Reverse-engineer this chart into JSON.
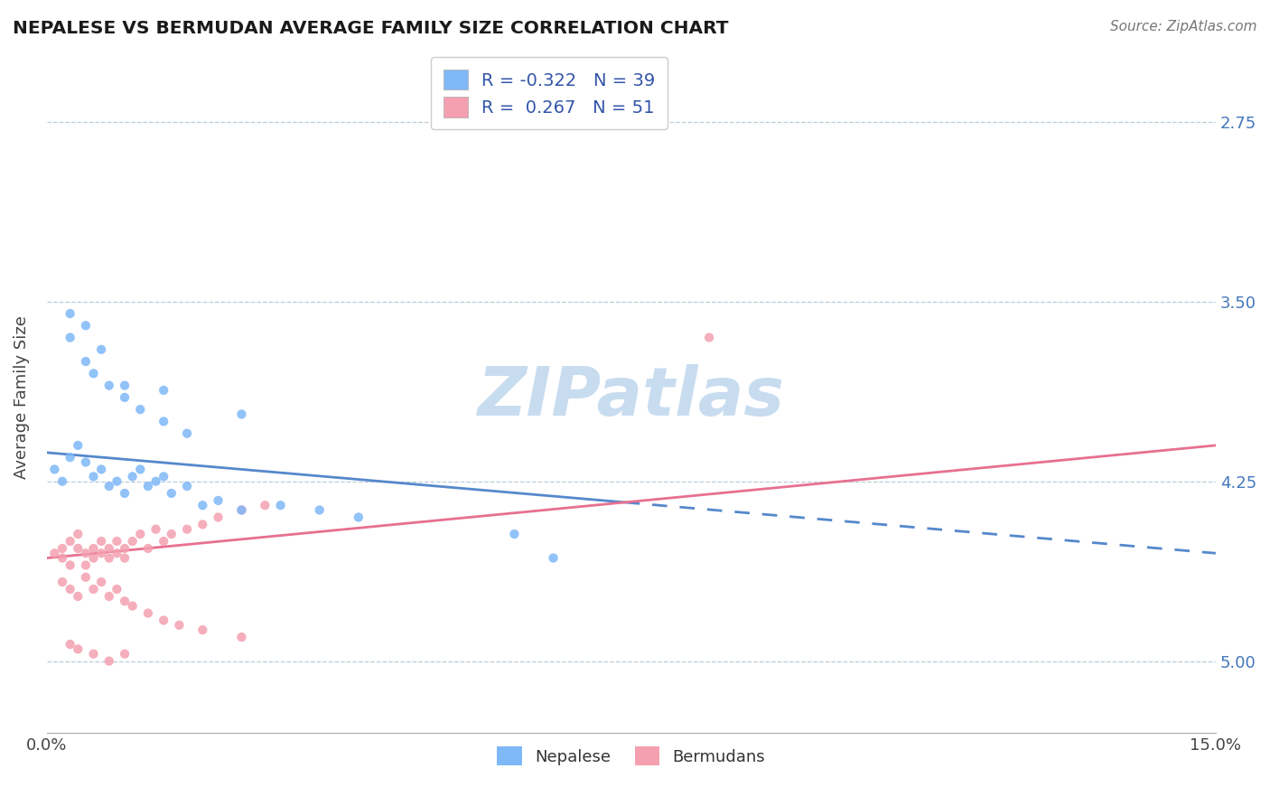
{
  "title": "NEPALESE VS BERMUDAN AVERAGE FAMILY SIZE CORRELATION CHART",
  "source_text": "Source: ZipAtlas.com",
  "ylabel": "Average Family Size",
  "xlim": [
    0.0,
    0.15
  ],
  "ylim": [
    2.45,
    5.25
  ],
  "yticks": [
    2.75,
    3.5,
    4.25,
    5.0
  ],
  "xticks": [
    0.0,
    0.15
  ],
  "xticklabels": [
    "0.0%",
    "15.0%"
  ],
  "yticklabels_right": [
    "5.00",
    "4.25",
    "3.50",
    "2.75"
  ],
  "nepalese_color": "#7EB8F7",
  "bermudan_color": "#F4A0B0",
  "nepalese_line_color": "#5588CC",
  "bermudan_line_color": "#E87090",
  "legend_text_color": "#3355AA",
  "watermark_text": "ZIPatlas",
  "watermark_color": "#C8DCF0",
  "R_nepalese": -0.322,
  "N_nepalese": 39,
  "R_bermudan": 0.267,
  "N_bermudan": 51,
  "nep_line_x0": 0.0,
  "nep_line_y0": 3.62,
  "nep_line_x1": 0.15,
  "nep_line_y1": 3.2,
  "berm_line_x0": 0.0,
  "berm_line_y0": 3.18,
  "berm_line_x1": 0.15,
  "berm_line_y1": 3.65,
  "nepalese_scatter_x": [
    0.001,
    0.002,
    0.003,
    0.004,
    0.005,
    0.006,
    0.007,
    0.008,
    0.009,
    0.01,
    0.011,
    0.012,
    0.013,
    0.014,
    0.015,
    0.016,
    0.018,
    0.02,
    0.022,
    0.025,
    0.03,
    0.035,
    0.04,
    0.003,
    0.005,
    0.006,
    0.008,
    0.01,
    0.012,
    0.015,
    0.018,
    0.003,
    0.005,
    0.007,
    0.01,
    0.015,
    0.025,
    0.06,
    0.065
  ],
  "nepalese_scatter_y": [
    3.55,
    3.5,
    3.6,
    3.65,
    3.58,
    3.52,
    3.55,
    3.48,
    3.5,
    3.45,
    3.52,
    3.55,
    3.48,
    3.5,
    3.52,
    3.45,
    3.48,
    3.4,
    3.42,
    3.38,
    3.4,
    3.38,
    3.35,
    4.1,
    4.0,
    3.95,
    3.9,
    3.85,
    3.8,
    3.75,
    3.7,
    4.2,
    4.15,
    4.05,
    3.9,
    3.88,
    3.78,
    3.28,
    3.18
  ],
  "bermudan_scatter_x": [
    0.001,
    0.002,
    0.002,
    0.003,
    0.003,
    0.004,
    0.004,
    0.005,
    0.005,
    0.006,
    0.006,
    0.007,
    0.007,
    0.008,
    0.008,
    0.009,
    0.009,
    0.01,
    0.01,
    0.011,
    0.012,
    0.013,
    0.014,
    0.015,
    0.016,
    0.018,
    0.02,
    0.022,
    0.025,
    0.028,
    0.002,
    0.003,
    0.004,
    0.005,
    0.006,
    0.007,
    0.008,
    0.009,
    0.01,
    0.011,
    0.013,
    0.015,
    0.017,
    0.02,
    0.025,
    0.003,
    0.004,
    0.006,
    0.008,
    0.01,
    0.085
  ],
  "bermudan_scatter_y": [
    3.2,
    3.22,
    3.18,
    3.25,
    3.15,
    3.22,
    3.28,
    3.2,
    3.15,
    3.22,
    3.18,
    3.25,
    3.2,
    3.22,
    3.18,
    3.25,
    3.2,
    3.22,
    3.18,
    3.25,
    3.28,
    3.22,
    3.3,
    3.25,
    3.28,
    3.3,
    3.32,
    3.35,
    3.38,
    3.4,
    3.08,
    3.05,
    3.02,
    3.1,
    3.05,
    3.08,
    3.02,
    3.05,
    3.0,
    2.98,
    2.95,
    2.92,
    2.9,
    2.88,
    2.85,
    2.82,
    2.8,
    2.78,
    2.75,
    2.78,
    4.1
  ]
}
